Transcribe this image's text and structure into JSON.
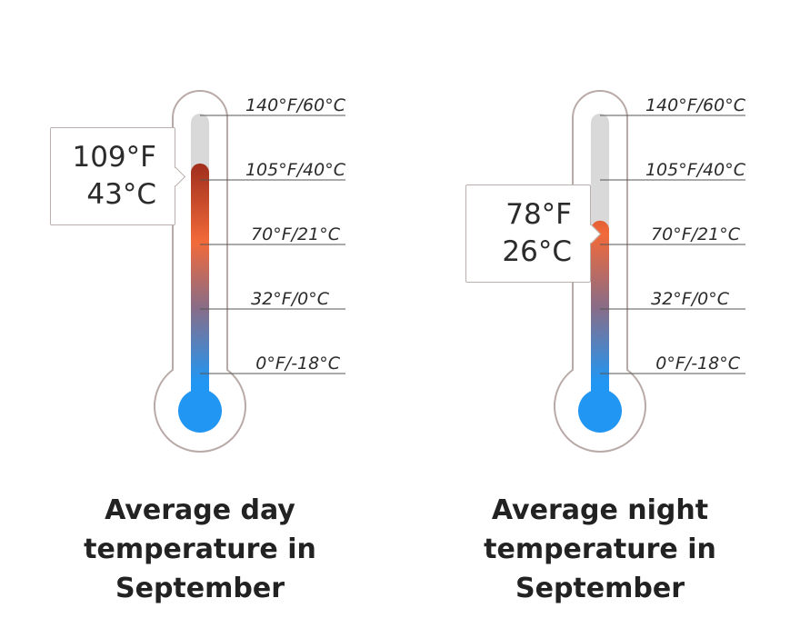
{
  "scale_labels": [
    "140°F/60°C",
    "105°F/40°C",
    "70°F/21°C",
    "32°F/0°C",
    "0°F/-18°C"
  ],
  "colors": {
    "outline": "#b9aaa8",
    "track": "#d9d9d9",
    "hot": "#a3311e",
    "warm": "#f26a3a",
    "mid": "#8a6c86",
    "cold": "#2196f3",
    "bulb": "#2196f3"
  },
  "thermometers": [
    {
      "reading_f": "109°F",
      "reading_c": "43°C",
      "level_f": 109,
      "caption": [
        "Average day",
        "temperature in",
        "September"
      ]
    },
    {
      "reading_f": "78°F",
      "reading_c": "26°C",
      "level_f": 78,
      "caption": [
        "Average night",
        "temperature in",
        "September"
      ]
    }
  ]
}
